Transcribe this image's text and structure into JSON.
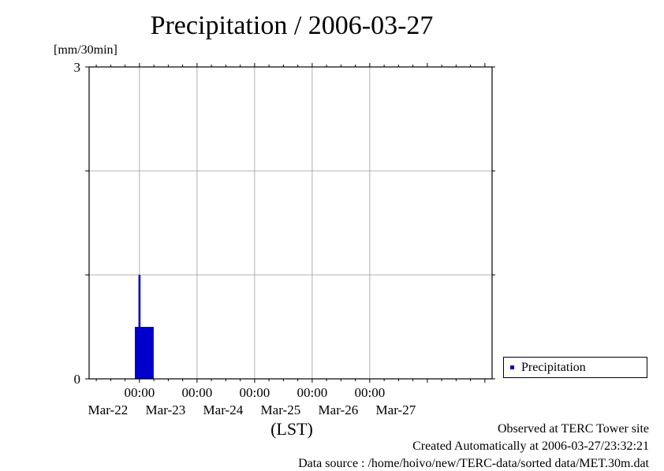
{
  "title": "Precipitation / 2006-03-27",
  "y_unit": "[mm/30min]",
  "x_axis_label": "(LST)",
  "legend": {
    "label": "Precipitation",
    "color": "#0000cc"
  },
  "footer": {
    "line1": "Observed at TERC Tower site",
    "line2": "Created Automatically at 2006-03-27/23:32:21",
    "line3": "Data source : /home/hoivo/new/TERC-data/sorted  data/MET.30m.dat"
  },
  "chart_data": {
    "type": "bar",
    "title": "Precipitation / 2006-03-27",
    "ylabel": "[mm/30min]",
    "xlabel": "(LST)",
    "ylim": [
      0,
      3
    ],
    "y_ticks_labeled": [
      0,
      3
    ],
    "y_gridlines": [
      1,
      2
    ],
    "x_range": [
      "2006-03-21 03:00",
      "2006-03-28 03:00"
    ],
    "x_ticks": [
      {
        "time": "00:00",
        "date": "Mar-22",
        "at": "2006-03-22 00:00"
      },
      {
        "time": "00:00",
        "date": "Mar-23",
        "at": "2006-03-23 00:00"
      },
      {
        "time": "00:00",
        "date": "Mar-24",
        "at": "2006-03-24 00:00"
      },
      {
        "time": "00:00",
        "date": "Mar-25",
        "at": "2006-03-25 00:00"
      },
      {
        "time": "00:00",
        "date": "Mar-26",
        "at": "2006-03-26 00:00"
      }
    ],
    "extra_date_label": {
      "date": "Mar-27",
      "at": "2006-03-27 00:00"
    },
    "grid": true,
    "legend_position": "bottom-right",
    "series": [
      {
        "name": "Precipitation",
        "color": "#0000cc",
        "points": [
          {
            "t": "2006-03-21 22:30",
            "v": 0.5
          },
          {
            "t": "2006-03-21 23:00",
            "v": 0.5
          },
          {
            "t": "2006-03-21 23:30",
            "v": 0.5
          },
          {
            "t": "2006-03-22 00:00",
            "v": 1.0
          },
          {
            "t": "2006-03-22 00:30",
            "v": 0.5
          },
          {
            "t": "2006-03-22 01:00",
            "v": 0.5
          },
          {
            "t": "2006-03-22 01:30",
            "v": 0.5
          },
          {
            "t": "2006-03-22 02:00",
            "v": 0.5
          },
          {
            "t": "2006-03-22 02:30",
            "v": 0.5
          },
          {
            "t": "2006-03-22 03:00",
            "v": 0.5
          },
          {
            "t": "2006-03-22 03:30",
            "v": 0.5
          },
          {
            "t": "2006-03-22 04:00",
            "v": 0.5
          },
          {
            "t": "2006-03-22 04:30",
            "v": 0.5
          },
          {
            "t": "2006-03-22 05:00",
            "v": 0.5
          },
          {
            "t": "2006-03-22 05:30",
            "v": 0.5
          }
        ]
      }
    ]
  }
}
